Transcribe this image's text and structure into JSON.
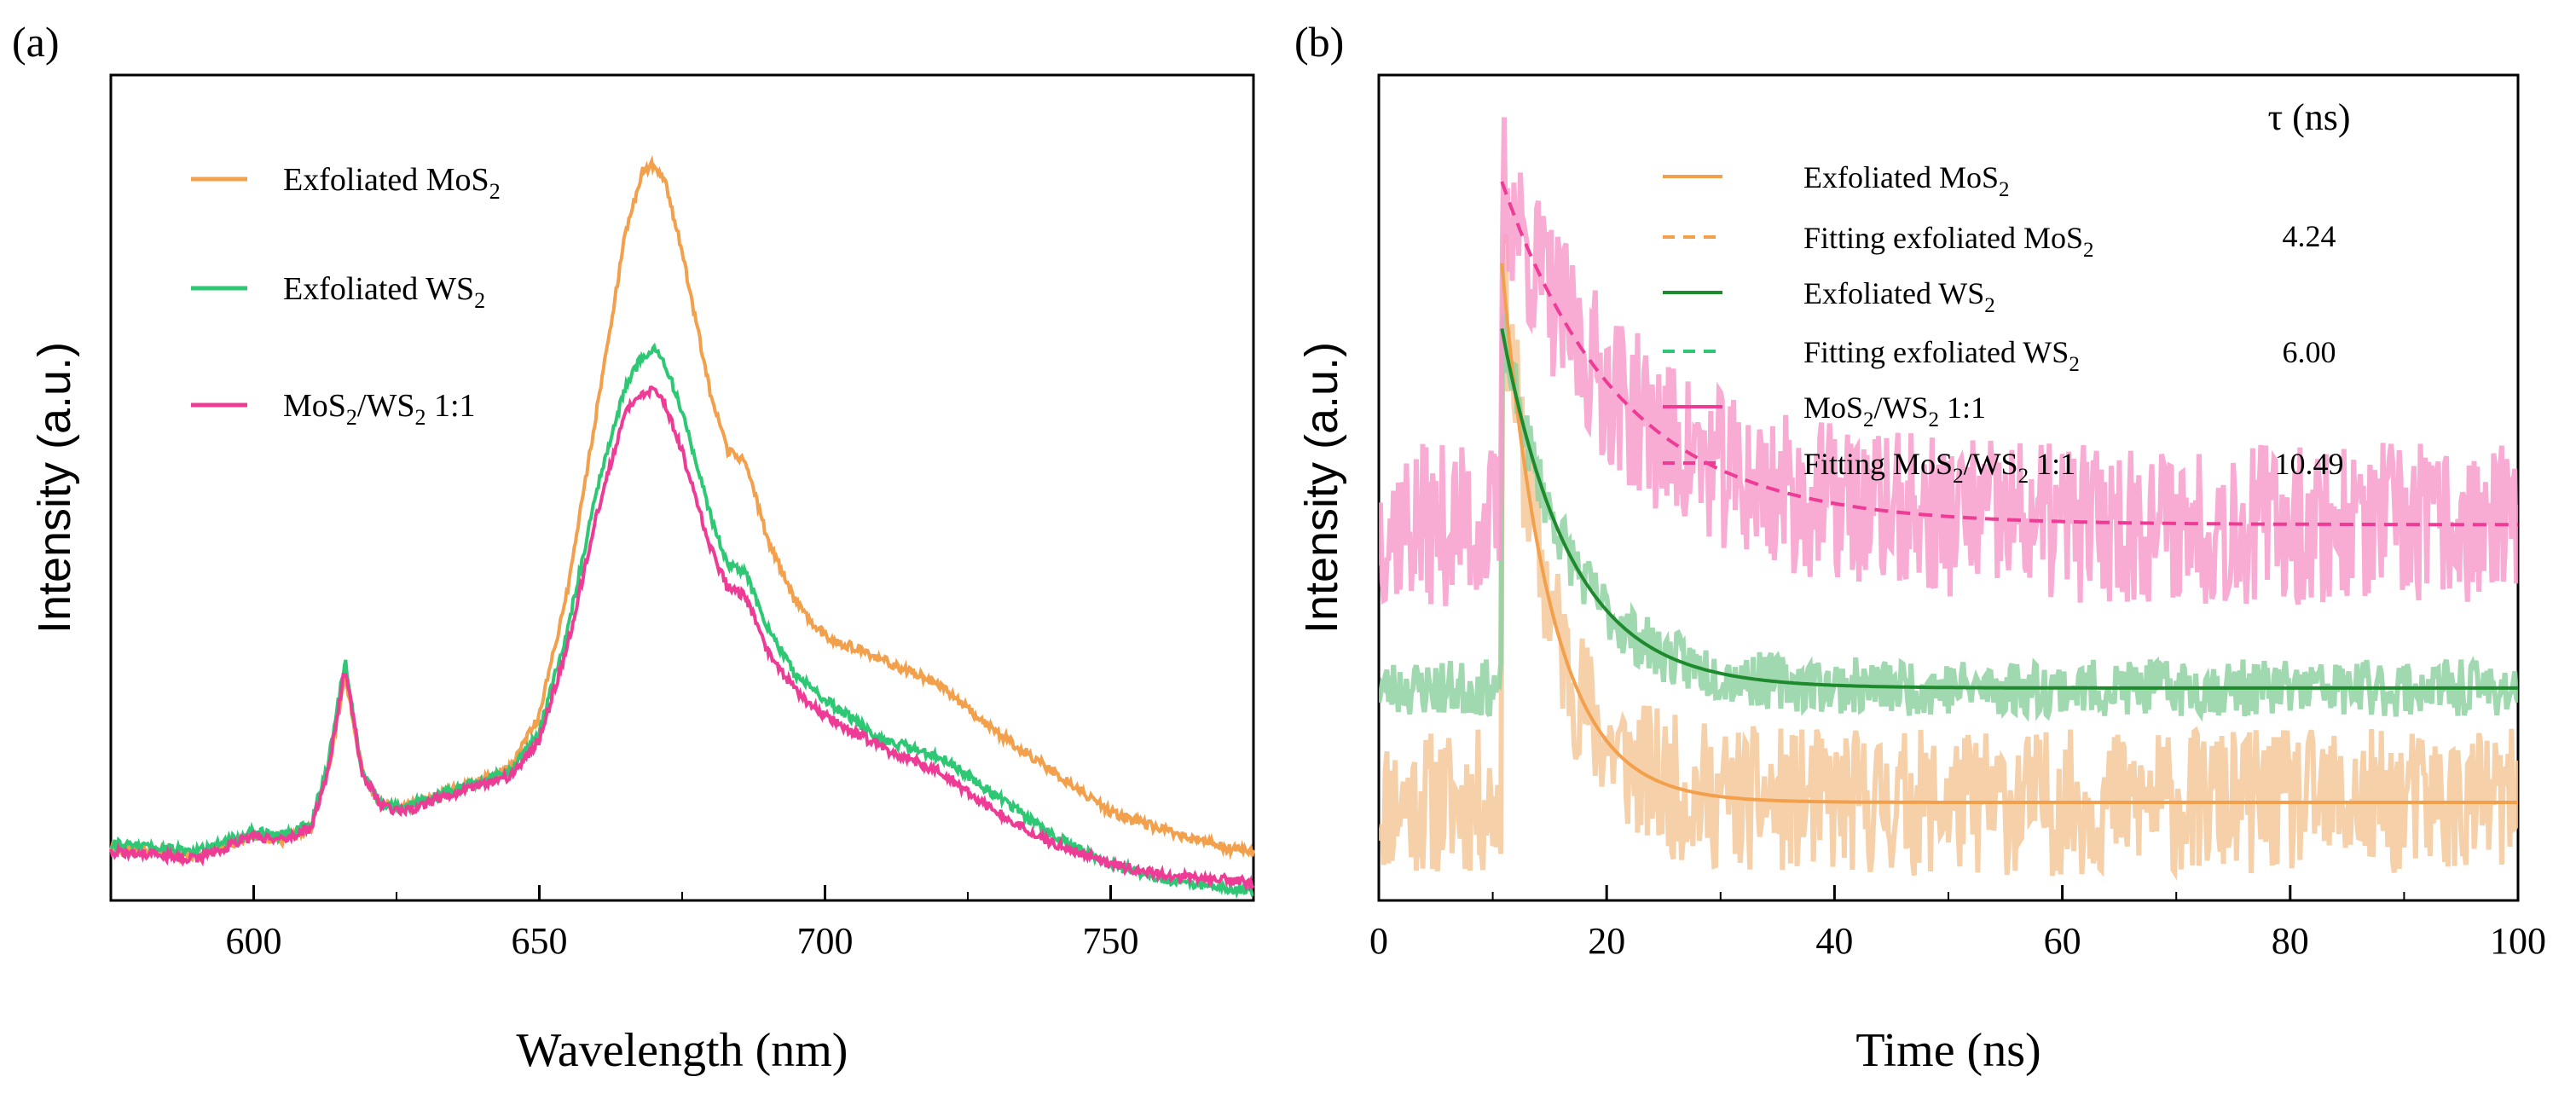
{
  "figure": {
    "panel_a_label": "(a)",
    "panel_b_label": "(b)"
  },
  "chart_data": [
    {
      "type": "line",
      "panel": "(a)",
      "title": "",
      "xlabel": "Wavelength (nm)",
      "ylabel": "Intensity (a.u.)",
      "xlim": [
        575,
        775
      ],
      "ylim": [
        0,
        1
      ],
      "xticks": [
        600,
        650,
        700,
        750
      ],
      "yticks_shown": false,
      "grid": false,
      "legend_position": "top-left",
      "series": [
        {
          "name": "Exfoliated MoS2",
          "legend_label": "Exfoliated MoS",
          "legend_sub": "2",
          "color": "#f2a04c",
          "x": [
            575,
            585,
            590,
            600,
            605,
            610,
            613,
            616,
            619,
            622,
            626,
            630,
            640,
            645,
            650,
            655,
            660,
            665,
            668,
            670,
            672,
            675,
            680,
            683,
            686,
            690,
            695,
            700,
            710,
            720,
            730,
            740,
            750,
            760,
            770,
            775
          ],
          "y": [
            0.055,
            0.05,
            0.045,
            0.07,
            0.065,
            0.08,
            0.15,
            0.27,
            0.15,
            0.11,
            0.105,
            0.115,
            0.14,
            0.155,
            0.22,
            0.38,
            0.6,
            0.82,
            0.9,
            0.91,
            0.89,
            0.8,
            0.62,
            0.55,
            0.54,
            0.44,
            0.36,
            0.32,
            0.29,
            0.26,
            0.2,
            0.15,
            0.1,
            0.075,
            0.055,
            0.05
          ]
        },
        {
          "name": "Exfoliated WS2",
          "legend_label": "Exfoliated WS",
          "legend_sub": "2",
          "color": "#2ec875",
          "x": [
            575,
            585,
            590,
            600,
            605,
            610,
            613,
            616,
            619,
            622,
            626,
            630,
            640,
            645,
            650,
            655,
            660,
            665,
            668,
            670,
            672,
            675,
            680,
            683,
            686,
            690,
            695,
            700,
            710,
            720,
            730,
            740,
            750,
            760,
            770,
            775
          ],
          "y": [
            0.06,
            0.055,
            0.05,
            0.075,
            0.07,
            0.085,
            0.16,
            0.29,
            0.15,
            0.11,
            0.105,
            0.115,
            0.14,
            0.15,
            0.2,
            0.33,
            0.5,
            0.63,
            0.67,
            0.68,
            0.66,
            0.6,
            0.47,
            0.41,
            0.4,
            0.33,
            0.27,
            0.24,
            0.19,
            0.17,
            0.12,
            0.07,
            0.035,
            0.015,
            0.005,
            0.0
          ]
        },
        {
          "name": "MoS2/WS2 1:1",
          "legend_label": "MoS",
          "legend_sub": "2",
          "legend_label2": "/WS",
          "legend_sub2": "2",
          "legend_label3": " 1:1",
          "color": "#ee3c96",
          "x": [
            575,
            585,
            590,
            600,
            605,
            610,
            613,
            616,
            619,
            622,
            626,
            630,
            640,
            645,
            650,
            655,
            660,
            665,
            668,
            670,
            672,
            675,
            680,
            683,
            686,
            690,
            695,
            700,
            710,
            720,
            730,
            740,
            750,
            760,
            770,
            775
          ],
          "y": [
            0.05,
            0.045,
            0.04,
            0.07,
            0.065,
            0.08,
            0.15,
            0.28,
            0.15,
            0.11,
            0.1,
            0.11,
            0.135,
            0.145,
            0.19,
            0.31,
            0.47,
            0.6,
            0.62,
            0.63,
            0.61,
            0.55,
            0.43,
            0.38,
            0.37,
            0.3,
            0.25,
            0.22,
            0.18,
            0.15,
            0.1,
            0.06,
            0.035,
            0.02,
            0.015,
            0.012
          ]
        }
      ]
    },
    {
      "type": "line",
      "panel": "(b)",
      "title": "",
      "xlabel": "Time (ns)",
      "ylabel": "Intensity (a.u.)",
      "xlim": [
        0,
        100
      ],
      "ylim": [
        0,
        1
      ],
      "xticks": [
        0,
        20,
        40,
        60,
        80,
        100
      ],
      "yticks_shown": false,
      "grid": false,
      "legend_position": "top-right",
      "tau_header": "τ (ns)",
      "rise_time_ns": 10.8,
      "series": [
        {
          "name": "Exfoliated MoS2",
          "legend_label": "Exfoliated MoS",
          "legend_sub": "2",
          "style": "raw",
          "color": "#f5c89a",
          "baseline": 0.12,
          "amplitude": 0.66,
          "tau": 4.24,
          "noise": 0.09,
          "seed": 11
        },
        {
          "name": "Fitting exfoliated MoS2",
          "legend_label": "Fitting exfoliated MoS",
          "legend_sub": "2",
          "tau_value": "4.24",
          "style": "fit-solid",
          "color": "#f2a04c",
          "baseline": 0.12,
          "amplitude": 0.66,
          "tau": 4.24
        },
        {
          "name": "Exfoliated WS2",
          "legend_label": "Exfoliated WS",
          "legend_sub": "2",
          "style": "raw",
          "color": "#8fd1a2",
          "baseline": 0.26,
          "amplitude": 0.44,
          "tau": 6.0,
          "noise": 0.035,
          "seed": 23
        },
        {
          "name": "Fitting exfoliated WS2",
          "legend_label": "Fitting exfoliated WS",
          "legend_sub": "2",
          "tau_value": "6.00",
          "style": "fit-solid",
          "color": "#1e8a2e",
          "baseline": 0.26,
          "amplitude": 0.44,
          "tau": 6.0
        },
        {
          "name": "MoS2/WS2 1:1",
          "legend_label": "MoS",
          "legend_sub": "2",
          "legend_label2": "/WS",
          "legend_sub2": "2",
          "legend_label3": " 1:1",
          "style": "raw",
          "color": "#f79ccb",
          "baseline": 0.46,
          "amplitude": 0.42,
          "tau": 10.49,
          "noise": 0.1,
          "seed": 37
        },
        {
          "name": "Fitting MoS2/WS2 1:1",
          "legend_label": "Fitting MoS",
          "legend_sub": "2",
          "legend_label2": "/WS",
          "legend_sub2": "2",
          "legend_label3": " 1:1",
          "tau_value": "10.49",
          "style": "fit-dashed",
          "color": "#ee3c96",
          "baseline": 0.46,
          "amplitude": 0.42,
          "tau": 10.49
        }
      ]
    }
  ]
}
